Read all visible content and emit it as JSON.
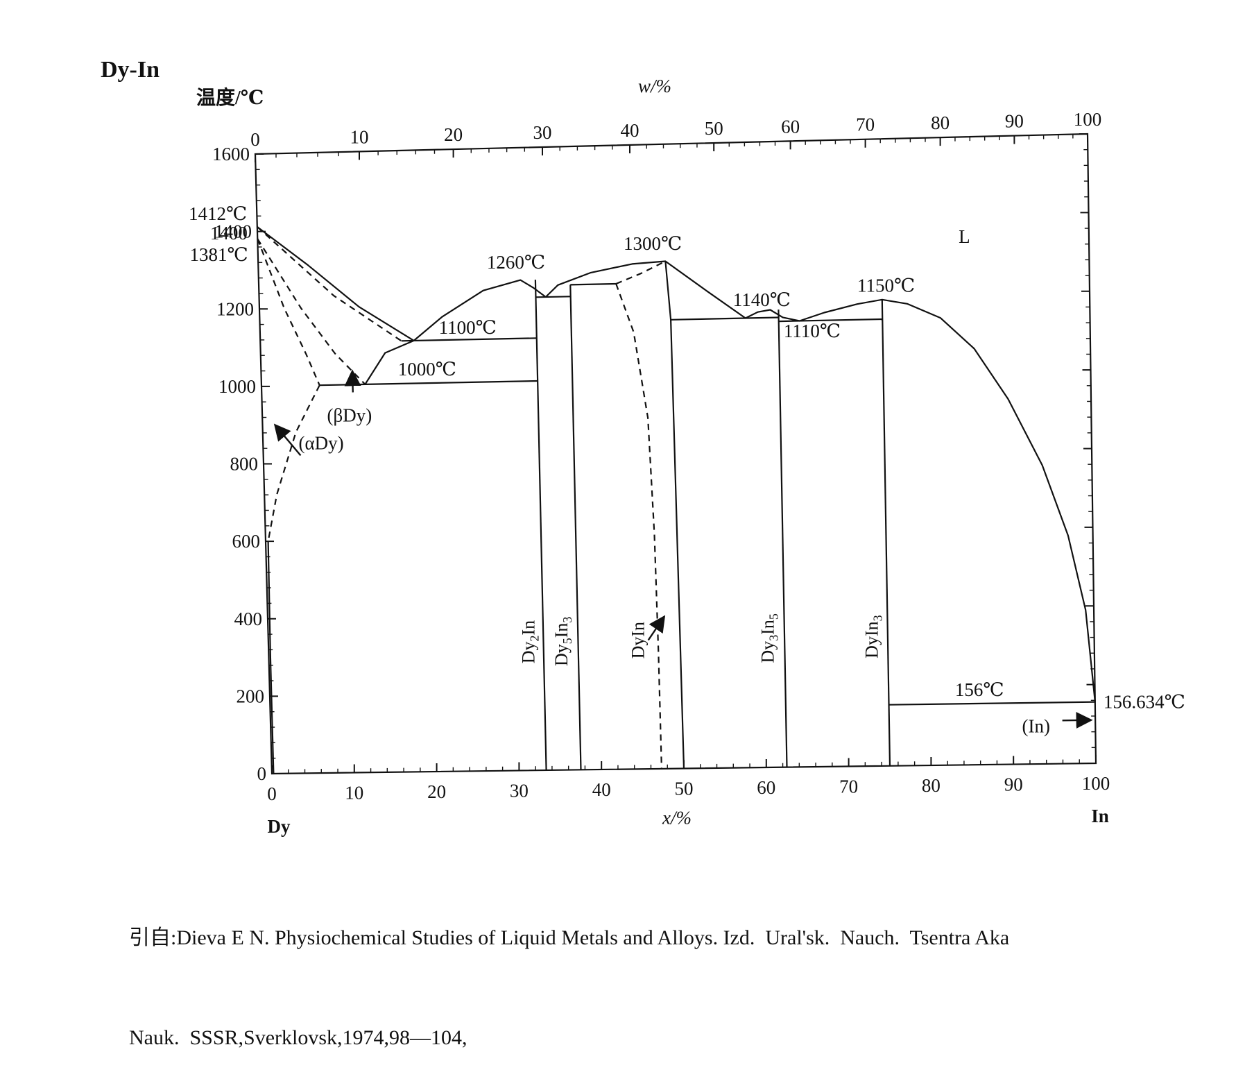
{
  "page": {
    "system_title": "Dy-In",
    "citation_lines": [
      "引自:Dieva E N. Physiochemical Studies of Liquid Metals and Alloys. Izd.  Ural'sk.  Nauch.  Tsentra Aka",
      "Nauk.  SSSR,Sverklovsk,1974,98—104,"
    ]
  },
  "chart_data": {
    "type": "line",
    "title": "",
    "ylabel": "温度/℃",
    "xlabel": "x/%",
    "top_axis_label": "w/%",
    "ylim": [
      0,
      1600
    ],
    "xlim": [
      0,
      100
    ],
    "y_ticks": [
      0,
      200,
      400,
      600,
      800,
      1000,
      1200,
      1400,
      1600
    ],
    "x_ticks": [
      0,
      10,
      20,
      30,
      40,
      50,
      60,
      70,
      80,
      90,
      100
    ],
    "top_ticks": [
      0,
      10,
      20,
      30,
      40,
      50,
      60,
      70,
      80,
      90,
      100
    ],
    "top_tick_x_at_fraction": [
      0,
      12.5,
      23.8,
      34.5,
      45,
      55.1,
      64.3,
      73.3,
      82.3,
      91.2,
      100
    ],
    "left_endpoint_label": "Dy",
    "right_endpoint_label": "In",
    "grid": false,
    "series": [
      {
        "style": "solid",
        "points": [
          [
            0,
            1412
          ],
          [
            6,
            1310
          ],
          [
            12,
            1200
          ],
          [
            18.5,
            1110
          ]
        ]
      },
      {
        "style": "solid",
        "points": [
          [
            12.5,
            1000
          ],
          [
            15,
            1080
          ],
          [
            18.5,
            1110
          ],
          [
            22,
            1170
          ],
          [
            27,
            1235
          ],
          [
            31.5,
            1260
          ],
          [
            33,
            1240
          ],
          [
            34.5,
            1215
          ]
        ]
      },
      {
        "style": "solid",
        "points": [
          [
            34.5,
            1215
          ],
          [
            36,
            1245
          ],
          [
            40,
            1275
          ],
          [
            45,
            1295
          ],
          [
            49,
            1300
          ],
          [
            54,
            1220
          ],
          [
            58.5,
            1150
          ],
          [
            60,
            1165
          ],
          [
            61.5,
            1170
          ],
          [
            63,
            1150
          ],
          [
            65,
            1140
          ],
          [
            68,
            1160
          ],
          [
            72,
            1180
          ],
          [
            75,
            1190
          ],
          [
            78,
            1178
          ],
          [
            82,
            1140
          ],
          [
            86,
            1060
          ],
          [
            90,
            930
          ],
          [
            94,
            760
          ],
          [
            97,
            580
          ],
          [
            99,
            390
          ],
          [
            100,
            157
          ]
        ]
      },
      {
        "style": "dashed",
        "points": [
          [
            0,
            1412
          ],
          [
            9,
            1230
          ],
          [
            17,
            1110
          ]
        ]
      },
      {
        "style": "dashed",
        "points": [
          [
            0,
            1381
          ],
          [
            5,
            1200
          ],
          [
            9,
            1080
          ],
          [
            12.5,
            1000
          ]
        ]
      },
      {
        "style": "dashed",
        "points": [
          [
            0,
            1381
          ],
          [
            3,
            1200
          ],
          [
            5.5,
            1080
          ],
          [
            7,
            1000
          ]
        ]
      },
      {
        "style": "dashed",
        "points": [
          [
            7,
            1000
          ],
          [
            4,
            880
          ],
          [
            1.5,
            720
          ],
          [
            0.3,
            600
          ]
        ]
      },
      {
        "style": "dashed",
        "points": [
          [
            43,
            1245
          ],
          [
            46,
            1270
          ],
          [
            49,
            1300
          ]
        ]
      },
      {
        "style": "dashed",
        "points": [
          [
            43,
            1245
          ],
          [
            45,
            1120
          ],
          [
            46.5,
            900
          ],
          [
            47,
            600
          ],
          [
            47.2,
            300
          ],
          [
            47.3,
            0
          ]
        ]
      },
      {
        "style": "solid",
        "points": [
          [
            0.3,
            600
          ],
          [
            0.2,
            300
          ],
          [
            0.2,
            0
          ]
        ]
      },
      {
        "style": "solid",
        "points": [
          [
            33.3,
            1260
          ],
          [
            33.3,
            0
          ]
        ]
      },
      {
        "style": "solid",
        "points": [
          [
            37.5,
            1245
          ],
          [
            37.5,
            0
          ]
        ]
      },
      {
        "style": "solid",
        "points": [
          [
            49,
            1300
          ],
          [
            49.5,
            1150
          ],
          [
            50,
            0
          ]
        ]
      },
      {
        "style": "solid",
        "points": [
          [
            62.5,
            1170
          ],
          [
            62.5,
            0
          ]
        ]
      },
      {
        "style": "solid",
        "points": [
          [
            75,
            1190
          ],
          [
            75,
            0
          ]
        ]
      },
      {
        "style": "solid",
        "points": [
          [
            7,
            1000
          ],
          [
            33.3,
            1000
          ]
        ]
      },
      {
        "style": "solid",
        "points": [
          [
            17,
            1110
          ],
          [
            33.3,
            1110
          ]
        ]
      },
      {
        "style": "solid",
        "points": [
          [
            33.3,
            1215
          ],
          [
            37.5,
            1215
          ]
        ]
      },
      {
        "style": "solid",
        "points": [
          [
            37.5,
            1245
          ],
          [
            43,
            1245
          ]
        ]
      },
      {
        "style": "solid",
        "points": [
          [
            49.5,
            1150
          ],
          [
            62.5,
            1150
          ]
        ]
      },
      {
        "style": "solid",
        "points": [
          [
            62.5,
            1140
          ],
          [
            75,
            1140
          ]
        ]
      },
      {
        "style": "solid",
        "points": [
          [
            75,
            156
          ],
          [
            100,
            156
          ]
        ]
      }
    ],
    "annotations": [
      {
        "text": "1412℃",
        "x": -1.2,
        "y": 1430,
        "anchor": "end"
      },
      {
        "text": "1400",
        "x": -1.2,
        "y": 1380,
        "anchor": "end"
      },
      {
        "text": "1381℃",
        "x": -1.2,
        "y": 1325,
        "anchor": "end"
      },
      {
        "text": "1260℃",
        "x": 31,
        "y": 1290,
        "anchor": "middle"
      },
      {
        "text": "1300℃",
        "x": 47.5,
        "y": 1330,
        "anchor": "middle"
      },
      {
        "text": "1100℃",
        "x": 25,
        "y": 1125,
        "anchor": "middle"
      },
      {
        "text": "1000℃",
        "x": 20,
        "y": 1020,
        "anchor": "middle"
      },
      {
        "text": "1140℃",
        "x": 60.5,
        "y": 1180,
        "anchor": "middle"
      },
      {
        "text": "1150℃",
        "x": 75.5,
        "y": 1210,
        "anchor": "middle"
      },
      {
        "text": "1110℃",
        "x": 66.5,
        "y": 1098,
        "anchor": "middle"
      },
      {
        "text": "L",
        "x": 85,
        "y": 1330,
        "anchor": "middle"
      },
      {
        "text": "(βDy)",
        "x": 10.5,
        "y": 905,
        "anchor": "middle"
      },
      {
        "text": "(αDy)",
        "x": 7,
        "y": 835,
        "anchor": "middle"
      },
      {
        "text": "156℃",
        "x": 86,
        "y": 175,
        "anchor": "middle"
      },
      {
        "text": "156.634℃",
        "x": 101,
        "y": 140,
        "anchor": "start"
      },
      {
        "text": "(In)",
        "x": 94.5,
        "y": 80,
        "anchor": "end"
      }
    ],
    "phase_labels": [
      {
        "text": "Dy",
        "sub": "2",
        "text2": "In",
        "sub2": "",
        "x": 32.2,
        "y": 330
      },
      {
        "text": "Dy",
        "sub": "5",
        "text2": "In",
        "sub2": "3",
        "x": 36.2,
        "y": 330
      },
      {
        "text": "DyIn",
        "sub": "",
        "text2": "",
        "sub2": "",
        "x": 45.5,
        "y": 330
      },
      {
        "text": "Dy",
        "sub": "3",
        "text2": "In",
        "sub2": "5",
        "x": 61.2,
        "y": 330
      },
      {
        "text": "DyIn",
        "sub": "3",
        "text2": "",
        "sub2": "",
        "x": 73.8,
        "y": 330
      }
    ],
    "arrows": [
      {
        "from": [
          11,
          980
        ],
        "to": [
          11,
          1035
        ]
      },
      {
        "from": [
          4.5,
          820
        ],
        "to": [
          1.5,
          900
        ]
      },
      {
        "from": [
          46,
          330
        ],
        "to": [
          48,
          390
        ]
      },
      {
        "from": [
          96,
          110
        ],
        "to": [
          99.5,
          110
        ]
      }
    ]
  }
}
